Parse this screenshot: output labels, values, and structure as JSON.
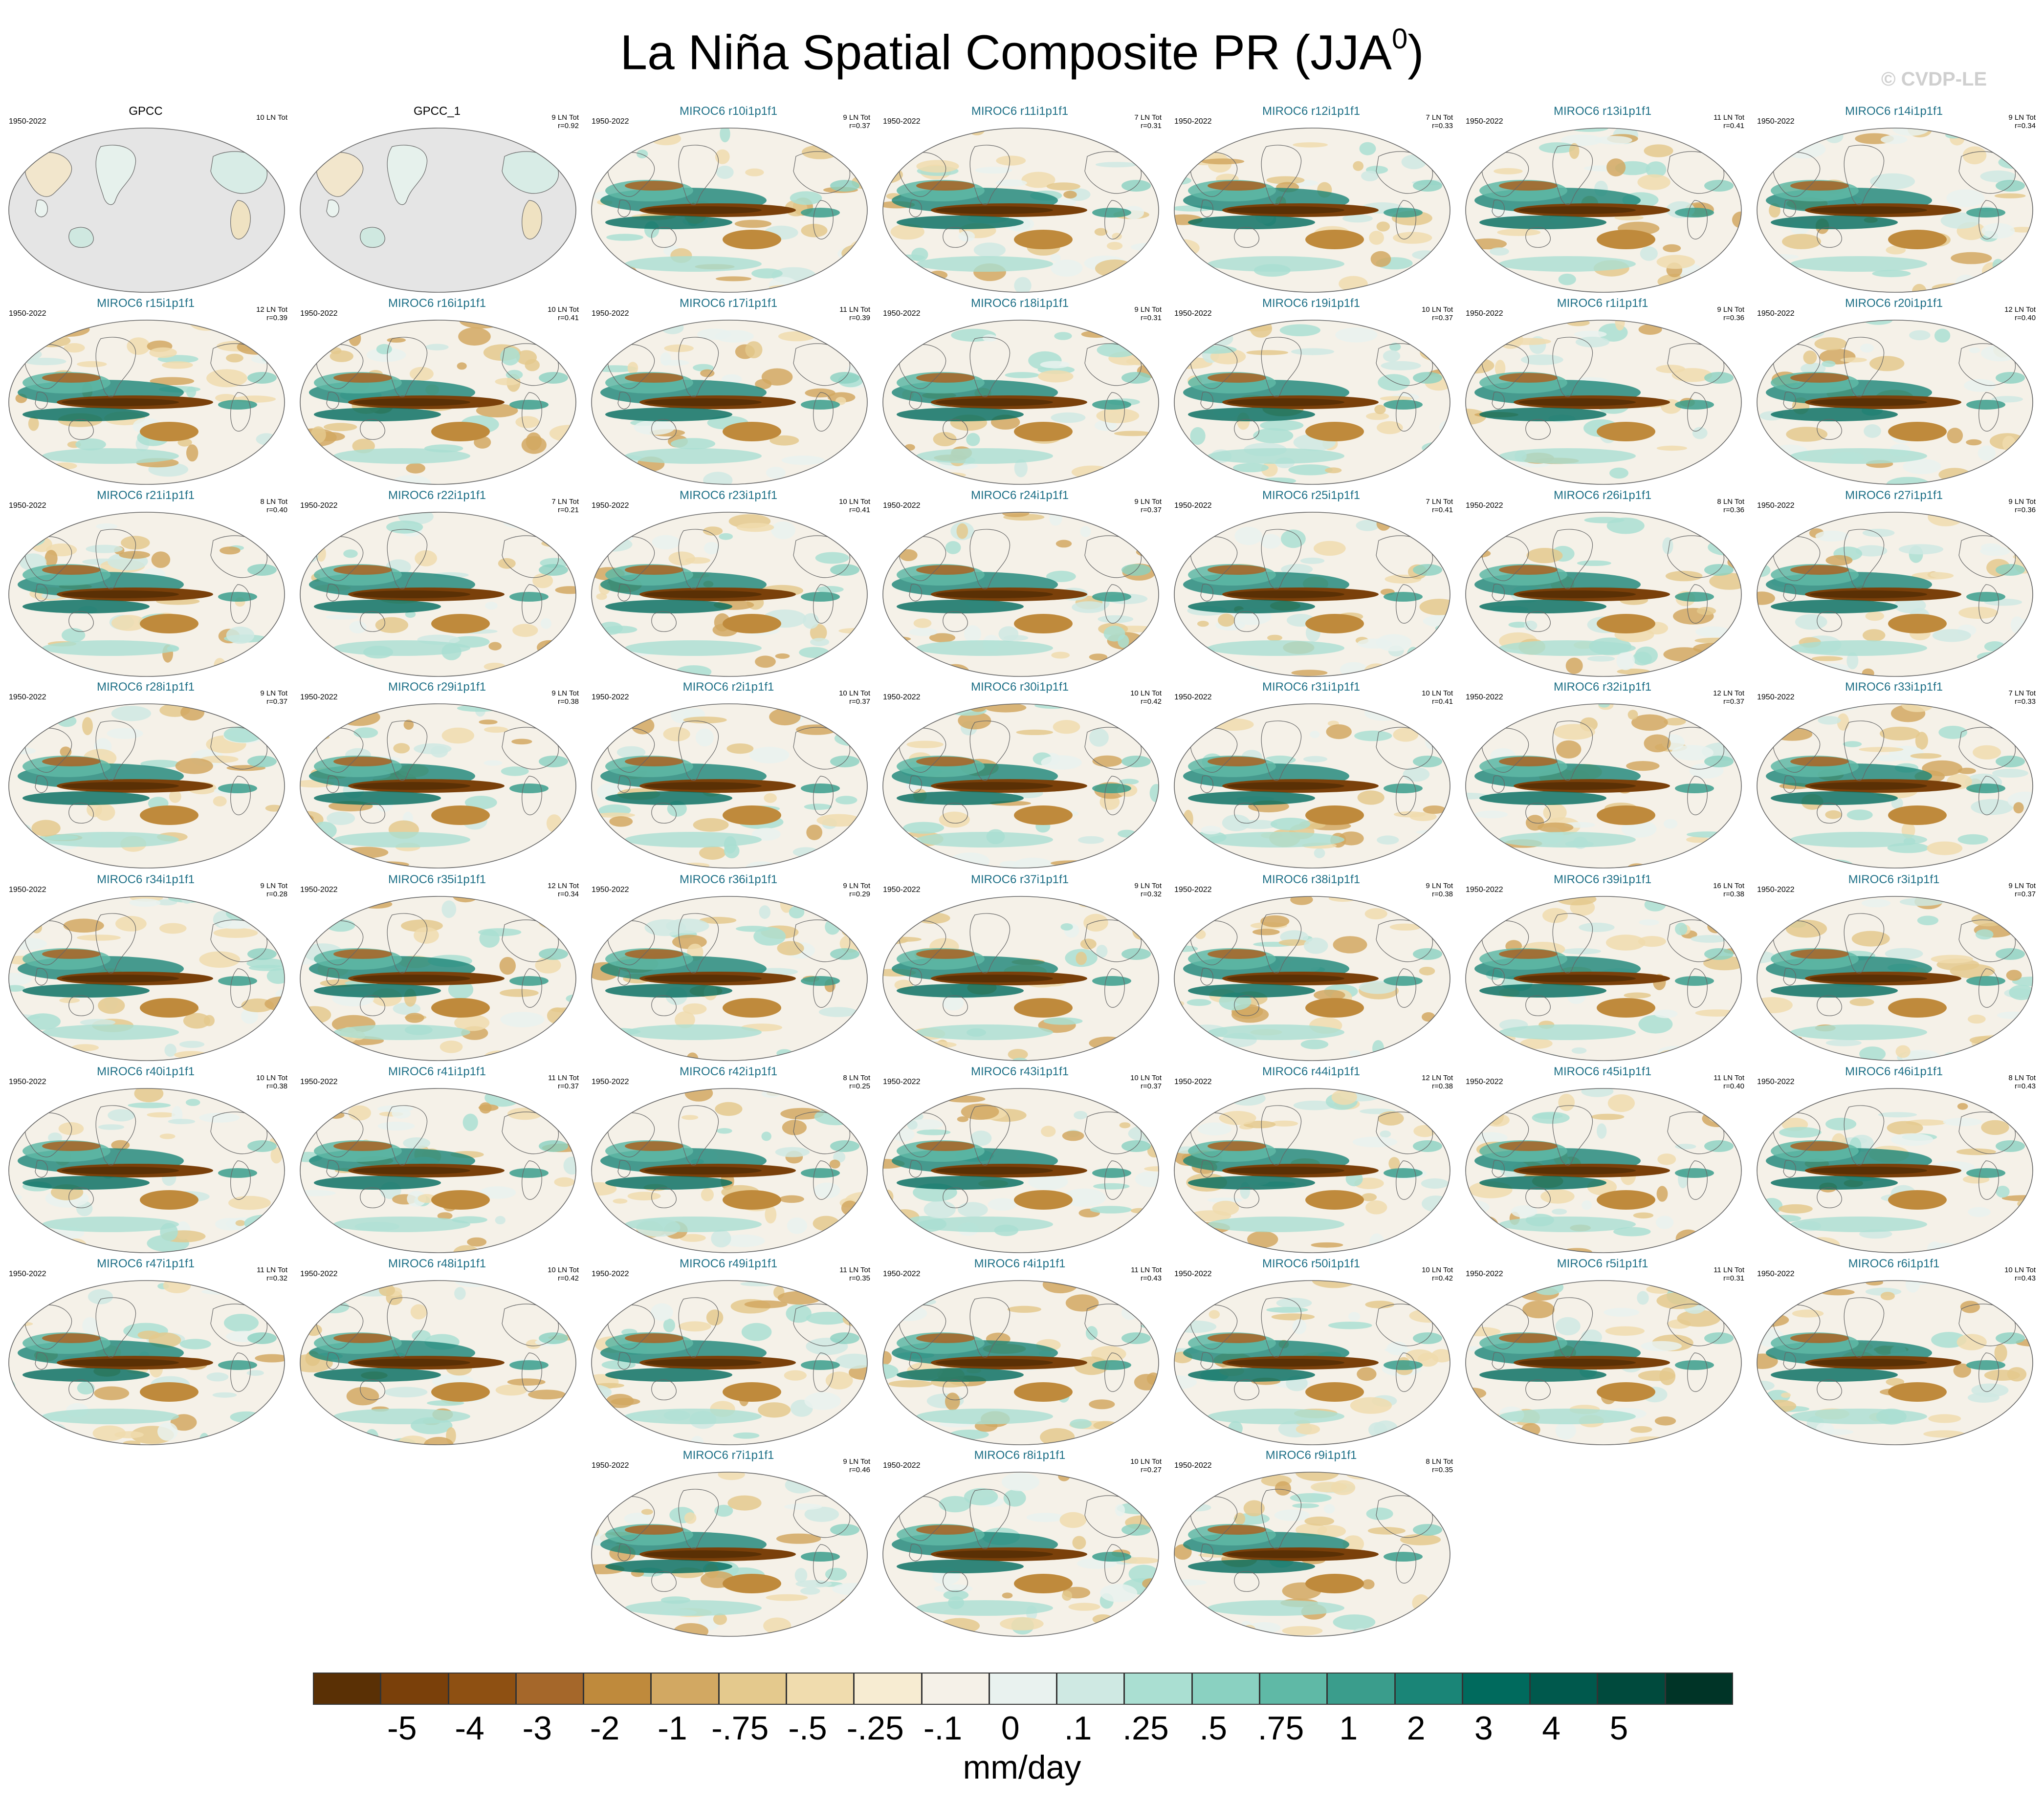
{
  "figure": {
    "title": "La Niña Spatial Composite PR (JJA",
    "title_superscript": "0",
    "title_close": ")",
    "watermark": "© CVDP-LE"
  },
  "panels": [
    {
      "title": "GPCC",
      "observed": true,
      "period": "1950-2022",
      "count": "10 LN Tot",
      "corr": ""
    },
    {
      "title": "GPCC_1",
      "observed": true,
      "period": "",
      "count": "9 LN Tot",
      "corr": "r=0.92"
    },
    {
      "title": "MIROC6 r10i1p1f1",
      "observed": false,
      "period": "1950-2022",
      "count": "9 LN Tot",
      "corr": "r=0.37"
    },
    {
      "title": "MIROC6 r11i1p1f1",
      "observed": false,
      "period": "1950-2022",
      "count": "7 LN Tot",
      "corr": "r=0.31"
    },
    {
      "title": "MIROC6 r12i1p1f1",
      "observed": false,
      "period": "1950-2022",
      "count": "7 LN Tot",
      "corr": "r=0.33"
    },
    {
      "title": "MIROC6 r13i1p1f1",
      "observed": false,
      "period": "1950-2022",
      "count": "11 LN Tot",
      "corr": "r=0.41"
    },
    {
      "title": "MIROC6 r14i1p1f1",
      "observed": false,
      "period": "1950-2022",
      "count": "9 LN Tot",
      "corr": "r=0.34"
    },
    {
      "title": "MIROC6 r15i1p1f1",
      "observed": false,
      "period": "1950-2022",
      "count": "12 LN Tot",
      "corr": "r=0.39"
    },
    {
      "title": "MIROC6 r16i1p1f1",
      "observed": false,
      "period": "1950-2022",
      "count": "10 LN Tot",
      "corr": "r=0.41"
    },
    {
      "title": "MIROC6 r17i1p1f1",
      "observed": false,
      "period": "1950-2022",
      "count": "11 LN Tot",
      "corr": "r=0.39"
    },
    {
      "title": "MIROC6 r18i1p1f1",
      "observed": false,
      "period": "1950-2022",
      "count": "9 LN Tot",
      "corr": "r=0.31"
    },
    {
      "title": "MIROC6 r19i1p1f1",
      "observed": false,
      "period": "1950-2022",
      "count": "10 LN Tot",
      "corr": "r=0.37"
    },
    {
      "title": "MIROC6 r1i1p1f1",
      "observed": false,
      "period": "1950-2022",
      "count": "9 LN Tot",
      "corr": "r=0.36"
    },
    {
      "title": "MIROC6 r20i1p1f1",
      "observed": false,
      "period": "1950-2022",
      "count": "12 LN Tot",
      "corr": "r=0.40"
    },
    {
      "title": "MIROC6 r21i1p1f1",
      "observed": false,
      "period": "1950-2022",
      "count": "8 LN Tot",
      "corr": "r=0.40"
    },
    {
      "title": "MIROC6 r22i1p1f1",
      "observed": false,
      "period": "1950-2022",
      "count": "7 LN Tot",
      "corr": "r=0.21"
    },
    {
      "title": "MIROC6 r23i1p1f1",
      "observed": false,
      "period": "1950-2022",
      "count": "10 LN Tot",
      "corr": "r=0.41"
    },
    {
      "title": "MIROC6 r24i1p1f1",
      "observed": false,
      "period": "1950-2022",
      "count": "9 LN Tot",
      "corr": "r=0.37"
    },
    {
      "title": "MIROC6 r25i1p1f1",
      "observed": false,
      "period": "1950-2022",
      "count": "7 LN Tot",
      "corr": "r=0.41"
    },
    {
      "title": "MIROC6 r26i1p1f1",
      "observed": false,
      "period": "1950-2022",
      "count": "8 LN Tot",
      "corr": "r=0.36"
    },
    {
      "title": "MIROC6 r27i1p1f1",
      "observed": false,
      "period": "1950-2022",
      "count": "9 LN Tot",
      "corr": "r=0.36"
    },
    {
      "title": "MIROC6 r28i1p1f1",
      "observed": false,
      "period": "1950-2022",
      "count": "9 LN Tot",
      "corr": "r=0.37"
    },
    {
      "title": "MIROC6 r29i1p1f1",
      "observed": false,
      "period": "1950-2022",
      "count": "9 LN Tot",
      "corr": "r=0.38"
    },
    {
      "title": "MIROC6 r2i1p1f1",
      "observed": false,
      "period": "1950-2022",
      "count": "10 LN Tot",
      "corr": "r=0.37"
    },
    {
      "title": "MIROC6 r30i1p1f1",
      "observed": false,
      "period": "1950-2022",
      "count": "10 LN Tot",
      "corr": "r=0.42"
    },
    {
      "title": "MIROC6 r31i1p1f1",
      "observed": false,
      "period": "1950-2022",
      "count": "10 LN Tot",
      "corr": "r=0.41"
    },
    {
      "title": "MIROC6 r32i1p1f1",
      "observed": false,
      "period": "1950-2022",
      "count": "12 LN Tot",
      "corr": "r=0.37"
    },
    {
      "title": "MIROC6 r33i1p1f1",
      "observed": false,
      "period": "1950-2022",
      "count": "7 LN Tot",
      "corr": "r=0.33"
    },
    {
      "title": "MIROC6 r34i1p1f1",
      "observed": false,
      "period": "1950-2022",
      "count": "9 LN Tot",
      "corr": "r=0.28"
    },
    {
      "title": "MIROC6 r35i1p1f1",
      "observed": false,
      "period": "1950-2022",
      "count": "12 LN Tot",
      "corr": "r=0.34"
    },
    {
      "title": "MIROC6 r36i1p1f1",
      "observed": false,
      "period": "1950-2022",
      "count": "9 LN Tot",
      "corr": "r=0.29"
    },
    {
      "title": "MIROC6 r37i1p1f1",
      "observed": false,
      "period": "1950-2022",
      "count": "9 LN Tot",
      "corr": "r=0.32"
    },
    {
      "title": "MIROC6 r38i1p1f1",
      "observed": false,
      "period": "1950-2022",
      "count": "9 LN Tot",
      "corr": "r=0.38"
    },
    {
      "title": "MIROC6 r39i1p1f1",
      "observed": false,
      "period": "1950-2022",
      "count": "16 LN Tot",
      "corr": "r=0.38"
    },
    {
      "title": "MIROC6 r3i1p1f1",
      "observed": false,
      "period": "1950-2022",
      "count": "9 LN Tot",
      "corr": "r=0.37"
    },
    {
      "title": "MIROC6 r40i1p1f1",
      "observed": false,
      "period": "1950-2022",
      "count": "10 LN Tot",
      "corr": "r=0.38"
    },
    {
      "title": "MIROC6 r41i1p1f1",
      "observed": false,
      "period": "1950-2022",
      "count": "11 LN Tot",
      "corr": "r=0.37"
    },
    {
      "title": "MIROC6 r42i1p1f1",
      "observed": false,
      "period": "1950-2022",
      "count": "8 LN Tot",
      "corr": "r=0.25"
    },
    {
      "title": "MIROC6 r43i1p1f1",
      "observed": false,
      "period": "1950-2022",
      "count": "10 LN Tot",
      "corr": "r=0.37"
    },
    {
      "title": "MIROC6 r44i1p1f1",
      "observed": false,
      "period": "1950-2022",
      "count": "12 LN Tot",
      "corr": "r=0.38"
    },
    {
      "title": "MIROC6 r45i1p1f1",
      "observed": false,
      "period": "1950-2022",
      "count": "11 LN Tot",
      "corr": "r=0.40"
    },
    {
      "title": "MIROC6 r46i1p1f1",
      "observed": false,
      "period": "1950-2022",
      "count": "8 LN Tot",
      "corr": "r=0.43"
    },
    {
      "title": "MIROC6 r47i1p1f1",
      "observed": false,
      "period": "1950-2022",
      "count": "11 LN Tot",
      "corr": "r=0.32"
    },
    {
      "title": "MIROC6 r48i1p1f1",
      "observed": false,
      "period": "1950-2022",
      "count": "10 LN Tot",
      "corr": "r=0.42"
    },
    {
      "title": "MIROC6 r49i1p1f1",
      "observed": false,
      "period": "1950-2022",
      "count": "11 LN Tot",
      "corr": "r=0.35"
    },
    {
      "title": "MIROC6 r4i1p1f1",
      "observed": false,
      "period": "1950-2022",
      "count": "11 LN Tot",
      "corr": "r=0.43"
    },
    {
      "title": "MIROC6 r50i1p1f1",
      "observed": false,
      "period": "1950-2022",
      "count": "10 LN Tot",
      "corr": "r=0.42"
    },
    {
      "title": "MIROC6 r5i1p1f1",
      "observed": false,
      "period": "1950-2022",
      "count": "11 LN Tot",
      "corr": "r=0.31"
    },
    {
      "title": "MIROC6 r6i1p1f1",
      "observed": false,
      "period": "1950-2022",
      "count": "10 LN Tot",
      "corr": "r=0.43"
    },
    {
      "title": "MIROC6 r7i1p1f1",
      "observed": false,
      "period": "1950-2022",
      "count": "9 LN Tot",
      "corr": "r=0.46"
    },
    {
      "title": "MIROC6 r8i1p1f1",
      "observed": false,
      "period": "1950-2022",
      "count": "10 LN Tot",
      "corr": "r=0.27"
    },
    {
      "title": "MIROC6 r9i1p1f1",
      "observed": false,
      "period": "1950-2022",
      "count": "8 LN Tot",
      "corr": "r=0.35"
    }
  ],
  "colorbar": {
    "colors": [
      "#5a3005",
      "#7a400a",
      "#8e5012",
      "#a5672a",
      "#bf8a3c",
      "#d2a862",
      "#e4c98d",
      "#f0dcae",
      "#f7ecd2",
      "#f5f1e8",
      "#e9f2ef",
      "#cfe9e3",
      "#aadfd2",
      "#8ad1c1",
      "#5fb9a6",
      "#3a9d8c",
      "#1a8577",
      "#006a5d",
      "#00594d",
      "#004a3d",
      "#003427"
    ],
    "labels": [
      "-5",
      "-4",
      "-3",
      "-2",
      "-1",
      "-.75",
      "-.5",
      "-.25",
      "-.1",
      "0",
      ".1",
      ".25",
      ".5",
      ".75",
      "1",
      "2",
      "3",
      "4",
      "5"
    ],
    "units": "mm/day"
  }
}
